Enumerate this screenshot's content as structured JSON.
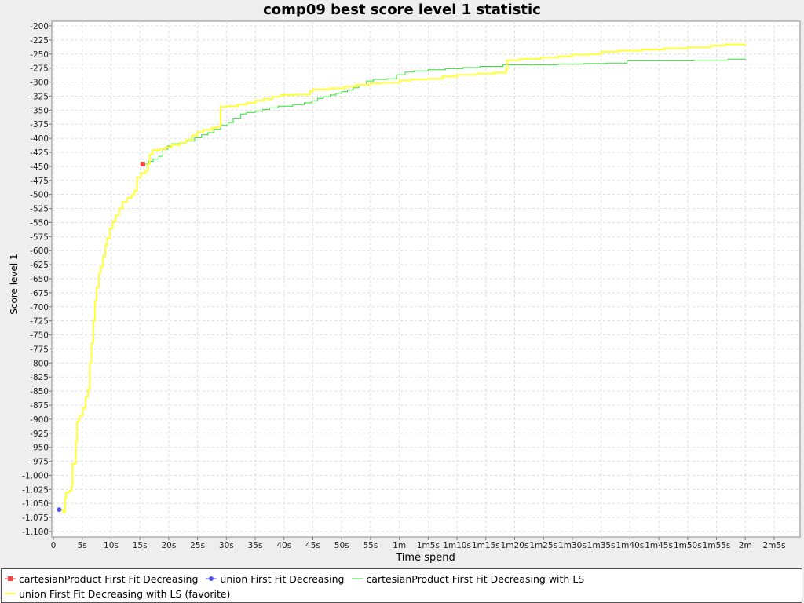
{
  "chart_data": {
    "type": "line",
    "title": "comp09 best score level 1 statistic",
    "xlabel": "Time spend",
    "ylabel": "Score level 1",
    "xlim": [
      0,
      128
    ],
    "ylim": [
      -1110,
      -190
    ],
    "x_unit": "s",
    "grid": true,
    "legend_position": "bottom",
    "x_ticks": [
      "0",
      "5s",
      "10s",
      "15s",
      "20s",
      "25s",
      "30s",
      "35s",
      "40s",
      "45s",
      "50s",
      "55s",
      "1m",
      "1m5s",
      "1m10s",
      "1m15s",
      "1m20s",
      "1m25s",
      "1m30s",
      "1m35s",
      "1m40s",
      "1m45s",
      "1m50s",
      "1m55s",
      "2m",
      "2m5s"
    ],
    "y_ticks": [
      "-200",
      "-225",
      "-250",
      "-275",
      "-300",
      "-325",
      "-350",
      "-375",
      "-400",
      "-425",
      "-450",
      "-475",
      "-500",
      "-525",
      "-550",
      "-575",
      "-600",
      "-625",
      "-650",
      "-675",
      "-700",
      "-725",
      "-750",
      "-775",
      "-800",
      "-825",
      "-850",
      "-875",
      "-900",
      "-925",
      "-950",
      "-975",
      "-1.000",
      "-1.025",
      "-1.050",
      "-1.075",
      "-1.100"
    ],
    "series": [
      {
        "name": "cartesianProduct First Fit Decreasing",
        "color": "#ee4444",
        "marker": "square",
        "points": [
          [
            15.5,
            -446
          ]
        ]
      },
      {
        "name": "union First Fit Decreasing",
        "color": "#5555ee",
        "marker": "circle",
        "points": [
          [
            1.0,
            -1061
          ]
        ]
      },
      {
        "name": "cartesianProduct First Fit Decreasing with LS",
        "color": "#33dd33",
        "marker": "none",
        "points": [
          [
            15.5,
            -446
          ],
          [
            16.5,
            -441
          ],
          [
            17.3,
            -437
          ],
          [
            18.3,
            -432
          ],
          [
            19.0,
            -420
          ],
          [
            19.8,
            -414
          ],
          [
            20.5,
            -410
          ],
          [
            21.8,
            -409
          ],
          [
            23.0,
            -405
          ],
          [
            24.5,
            -399
          ],
          [
            25.7,
            -394
          ],
          [
            26.8,
            -390
          ],
          [
            27.8,
            -384
          ],
          [
            29.0,
            -377
          ],
          [
            30.3,
            -372
          ],
          [
            31.2,
            -364
          ],
          [
            32.5,
            -357
          ],
          [
            33.5,
            -354
          ],
          [
            35.0,
            -352
          ],
          [
            36.3,
            -349
          ],
          [
            37.5,
            -346
          ],
          [
            39.0,
            -343
          ],
          [
            41.5,
            -340
          ],
          [
            43.5,
            -337
          ],
          [
            44.8,
            -333
          ],
          [
            45.8,
            -329
          ],
          [
            46.8,
            -326
          ],
          [
            48.0,
            -323
          ],
          [
            49.0,
            -320
          ],
          [
            50.0,
            -317
          ],
          [
            51.0,
            -314
          ],
          [
            52.0,
            -310
          ],
          [
            53.0,
            -305
          ],
          [
            54.3,
            -298
          ],
          [
            55.5,
            -295
          ],
          [
            57.8,
            -294
          ],
          [
            59.5,
            -287
          ],
          [
            61.0,
            -282
          ],
          [
            62.5,
            -280
          ],
          [
            65.0,
            -278
          ],
          [
            68.0,
            -276
          ],
          [
            71.0,
            -274
          ],
          [
            74.0,
            -272
          ],
          [
            78.0,
            -269
          ],
          [
            83.0,
            -269
          ],
          [
            87.5,
            -268
          ],
          [
            92.0,
            -267
          ],
          [
            96.0,
            -266
          ],
          [
            99.5,
            -262
          ],
          [
            105.0,
            -262
          ],
          [
            111.0,
            -261
          ],
          [
            117.0,
            -259
          ],
          [
            120.0,
            -258
          ]
        ]
      },
      {
        "name": "union First Fit Decreasing with LS (favorite)",
        "color": "#ffff44",
        "marker": "none",
        "points": [
          [
            1.0,
            -1061
          ],
          [
            1.7,
            -1066
          ],
          [
            2.0,
            -1040
          ],
          [
            2.2,
            -1030
          ],
          [
            2.8,
            -1027
          ],
          [
            3.1,
            -1020
          ],
          [
            3.3,
            -980
          ],
          [
            3.7,
            -978
          ],
          [
            3.9,
            -940
          ],
          [
            4.1,
            -905
          ],
          [
            4.4,
            -898
          ],
          [
            4.6,
            -893
          ],
          [
            5.1,
            -880
          ],
          [
            5.6,
            -860
          ],
          [
            6.0,
            -847
          ],
          [
            6.3,
            -800
          ],
          [
            6.6,
            -765
          ],
          [
            6.9,
            -725
          ],
          [
            7.2,
            -690
          ],
          [
            7.5,
            -665
          ],
          [
            7.9,
            -640
          ],
          [
            8.2,
            -628
          ],
          [
            8.6,
            -610
          ],
          [
            9.0,
            -590
          ],
          [
            9.3,
            -578
          ],
          [
            9.8,
            -560
          ],
          [
            10.3,
            -548
          ],
          [
            10.8,
            -537
          ],
          [
            11.4,
            -525
          ],
          [
            12.0,
            -513
          ],
          [
            12.8,
            -506
          ],
          [
            13.6,
            -500
          ],
          [
            14.1,
            -493
          ],
          [
            14.5,
            -470
          ],
          [
            15.2,
            -462
          ],
          [
            16.0,
            -458
          ],
          [
            16.4,
            -446
          ],
          [
            16.7,
            -429
          ],
          [
            17.2,
            -421
          ],
          [
            18.5,
            -419
          ],
          [
            19.5,
            -416
          ],
          [
            20.5,
            -412
          ],
          [
            22.0,
            -408
          ],
          [
            23.0,
            -403
          ],
          [
            24.0,
            -395
          ],
          [
            25.0,
            -389
          ],
          [
            26.0,
            -385
          ],
          [
            27.5,
            -381
          ],
          [
            28.5,
            -379
          ],
          [
            29.0,
            -344
          ],
          [
            30.0,
            -343
          ],
          [
            32.0,
            -340
          ],
          [
            33.5,
            -337
          ],
          [
            35.0,
            -333
          ],
          [
            36.5,
            -330
          ],
          [
            38.0,
            -326
          ],
          [
            39.5,
            -323
          ],
          [
            42.0,
            -322
          ],
          [
            44.5,
            -316
          ],
          [
            45.0,
            -313
          ],
          [
            48.0,
            -311
          ],
          [
            50.5,
            -308
          ],
          [
            52.5,
            -305
          ],
          [
            55.0,
            -302
          ],
          [
            57.0,
            -301
          ],
          [
            60.0,
            -297
          ],
          [
            62.0,
            -295
          ],
          [
            65.0,
            -294
          ],
          [
            67.5,
            -290
          ],
          [
            70.0,
            -287
          ],
          [
            73.5,
            -285
          ],
          [
            76.5,
            -283
          ],
          [
            78.5,
            -278
          ],
          [
            78.7,
            -261
          ],
          [
            81.0,
            -259
          ],
          [
            84.5,
            -256
          ],
          [
            87.5,
            -254
          ],
          [
            90.0,
            -251
          ],
          [
            93.0,
            -250
          ],
          [
            95.0,
            -246
          ],
          [
            98.0,
            -244
          ],
          [
            102.0,
            -242
          ],
          [
            106.0,
            -240
          ],
          [
            110.0,
            -238
          ],
          [
            114.0,
            -235
          ],
          [
            116.5,
            -233
          ],
          [
            120.0,
            -231
          ]
        ]
      }
    ]
  }
}
